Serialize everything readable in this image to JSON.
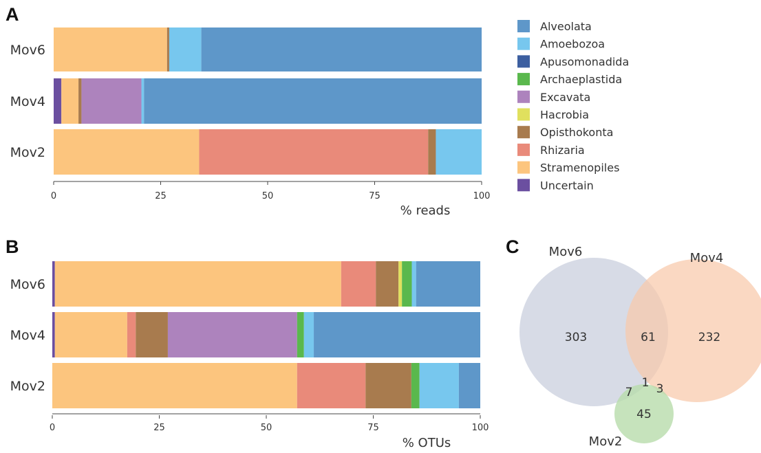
{
  "panels": {
    "a": "A",
    "b": "B",
    "c": "C"
  },
  "legend": [
    {
      "name": "Alveolata",
      "color": "#5e97c9"
    },
    {
      "name": "Amoebozoa",
      "color": "#77c7ee"
    },
    {
      "name": "Apusomonadida",
      "color": "#3c5fa0"
    },
    {
      "name": "Archaeplastida",
      "color": "#5ab84d"
    },
    {
      "name": "Excavata",
      "color": "#ad83bd"
    },
    {
      "name": "Hacrobia",
      "color": "#e0e05e"
    },
    {
      "name": "Opisthokonta",
      "color": "#a87b4e"
    },
    {
      "name": "Rhizaria",
      "color": "#e98a7a"
    },
    {
      "name": "Stramenopiles",
      "color": "#fcc57e"
    },
    {
      "name": "Uncertain",
      "color": "#6b4fa0"
    }
  ],
  "chart_data": [
    {
      "type": "bar",
      "orientation": "horizontal",
      "stacked": true,
      "panel": "A",
      "categories": [
        "Mov6",
        "Mov4",
        "Mov2"
      ],
      "xlabel": "% reads",
      "xlim": [
        0,
        100
      ],
      "xticks": [
        "0",
        "25",
        "50",
        "75",
        "100"
      ],
      "series": [
        {
          "name": "Uncertain",
          "values": [
            0,
            1.8,
            0
          ]
        },
        {
          "name": "Stramenopiles",
          "values": [
            26.5,
            4,
            34
          ]
        },
        {
          "name": "Rhizaria",
          "values": [
            0,
            0,
            53.5
          ]
        },
        {
          "name": "Opisthokonta",
          "values": [
            0.5,
            0.7,
            1.8
          ]
        },
        {
          "name": "Hacrobia",
          "values": [
            0,
            0,
            0
          ]
        },
        {
          "name": "Excavata",
          "values": [
            0,
            14,
            0
          ]
        },
        {
          "name": "Archaeplastida",
          "values": [
            0,
            0,
            0
          ]
        },
        {
          "name": "Apusomonadida",
          "values": [
            0,
            0,
            0
          ]
        },
        {
          "name": "Amoebozoa",
          "values": [
            7.5,
            0.6,
            10.7
          ]
        },
        {
          "name": "Alveolata",
          "values": [
            65.5,
            78.9,
            0
          ]
        }
      ]
    },
    {
      "type": "bar",
      "orientation": "horizontal",
      "stacked": true,
      "panel": "B",
      "categories": [
        "Mov6",
        "Mov4",
        "Mov2"
      ],
      "xlabel": "% OTUs",
      "xlim": [
        0,
        100
      ],
      "xticks": [
        "0",
        "25",
        "50",
        "75",
        "100"
      ],
      "series": [
        {
          "name": "Uncertain",
          "values": [
            0.6,
            0.6,
            0
          ]
        },
        {
          "name": "Stramenopiles",
          "values": [
            66.9,
            16.9,
            57.2
          ]
        },
        {
          "name": "Rhizaria",
          "values": [
            8.1,
            2.0,
            16.0
          ]
        },
        {
          "name": "Opisthokonta",
          "values": [
            5.3,
            7.5,
            10.7
          ]
        },
        {
          "name": "Hacrobia",
          "values": [
            0.8,
            0,
            0
          ]
        },
        {
          "name": "Excavata",
          "values": [
            0,
            30.2,
            0
          ]
        },
        {
          "name": "Archaeplastida",
          "values": [
            2.3,
            1.6,
            1.9
          ]
        },
        {
          "name": "Apusomonadida",
          "values": [
            0,
            0,
            0
          ]
        },
        {
          "name": "Amoebozoa",
          "values": [
            1.0,
            2.3,
            9.2
          ]
        },
        {
          "name": "Alveolata",
          "values": [
            15.0,
            38.9,
            5.0
          ]
        }
      ]
    },
    {
      "type": "venn",
      "panel": "C",
      "sets": [
        {
          "name": "Mov6",
          "color": "#c9cfdd"
        },
        {
          "name": "Mov4",
          "color": "#f8c9ab"
        },
        {
          "name": "Mov2",
          "color": "#b8dcab"
        }
      ],
      "regions": {
        "Mov6_only": 303,
        "Mov4_only": 232,
        "Mov6_Mov4": 61,
        "Mov6_Mov4_Mov2": 1,
        "Mov6_Mov2": 7,
        "Mov4_Mov2": 3,
        "Mov2_only": 45
      }
    }
  ]
}
